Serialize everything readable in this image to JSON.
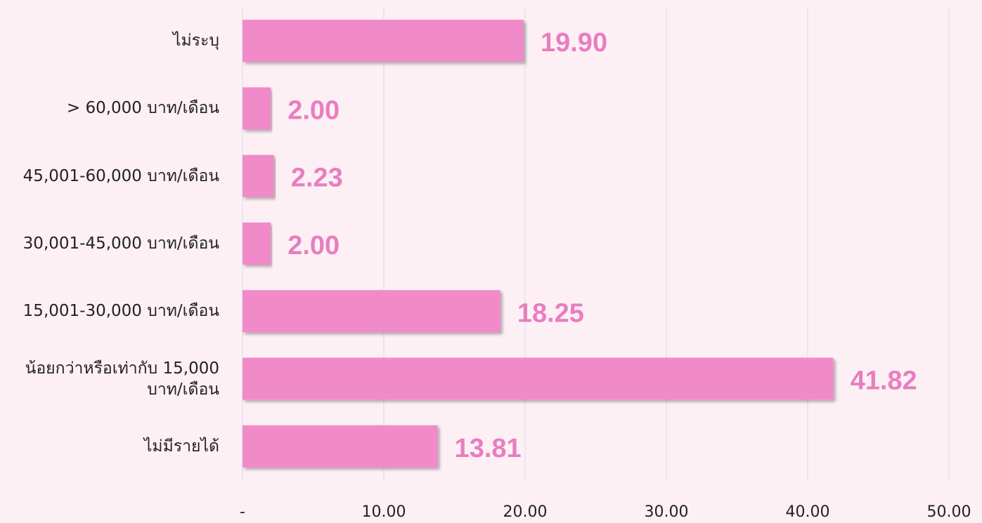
{
  "chart_data": {
    "type": "hbar",
    "categories": [
      "ไม่ระบุ",
      "> 60,000 บาท/เดือน",
      "45,001-60,000 บาท/เดือน",
      "30,001-45,000 บาท/เดือน",
      "15,001-30,000 บาท/เดือน",
      "น้อยกว่าหรือเท่ากับ 15,000 บาท/เดือน",
      "ไม่มีรายได้"
    ],
    "values": [
      19.9,
      2,
      2.23,
      2,
      18.25,
      41.82,
      13.81
    ],
    "value_labels": [
      "19.90",
      "2.00",
      "2.23",
      "2.00",
      "18.25",
      "41.82",
      "13.81"
    ],
    "color": "#f08ac8",
    "label_color": "#e97dc0",
    "xlim": [
      0,
      50
    ],
    "xticks": [
      {
        "value": 0,
        "label": "-"
      },
      {
        "value": 10,
        "label": "10.00"
      },
      {
        "value": 20,
        "label": "20.00"
      },
      {
        "value": 30,
        "label": "30.00"
      },
      {
        "value": 40,
        "label": "40.00"
      },
      {
        "value": 50,
        "label": "50.00"
      }
    ],
    "grid": true
  }
}
